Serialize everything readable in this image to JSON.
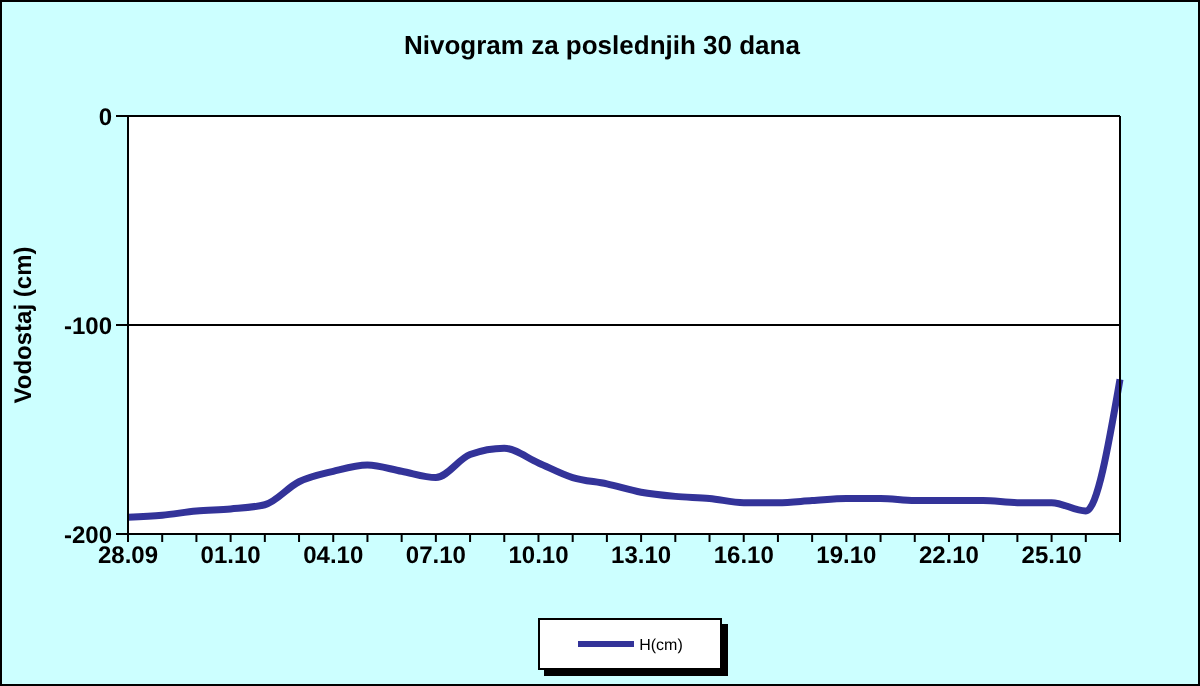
{
  "chart_data": {
    "type": "line",
    "title": "Nivogram za poslednjih 30 dana",
    "ylabel": "Vodostaj (cm)",
    "categories": [
      "28.09",
      null,
      null,
      "01.10",
      null,
      null,
      "04.10",
      null,
      null,
      "07.10",
      null,
      null,
      "10.10",
      null,
      null,
      "13.10",
      null,
      null,
      "16.10",
      null,
      null,
      "19.10",
      null,
      null,
      "22.10",
      null,
      null,
      "25.10",
      null,
      null
    ],
    "series": [
      {
        "name": "H(cm)",
        "color": "#333399",
        "values": [
          -192,
          -191,
          -189,
          -188,
          -186,
          -175,
          -170,
          -167,
          -170,
          -173,
          -162,
          -159,
          -166,
          -173,
          -176,
          -180,
          -182,
          -183,
          -185,
          -185,
          -184,
          -183,
          -183,
          -184,
          -184,
          -184,
          -185,
          -185,
          -189,
          -126
        ]
      }
    ],
    "ylim": [
      -200,
      0
    ],
    "yticks": [
      -200,
      -100,
      0
    ],
    "grid": "y",
    "legend": "bottom",
    "marker": "none",
    "line_style": "solid"
  }
}
